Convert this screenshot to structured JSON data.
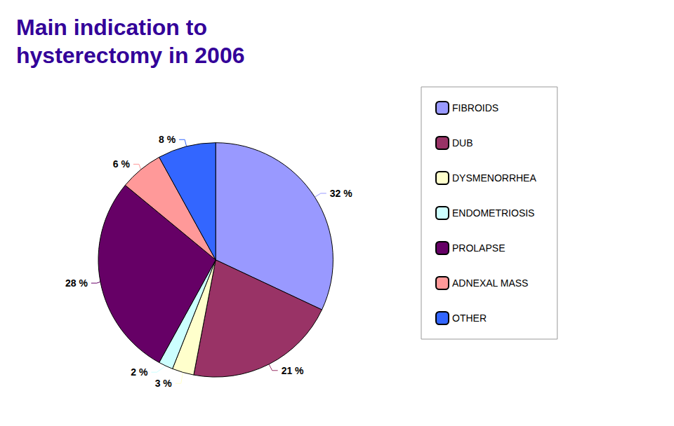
{
  "chart_data": {
    "type": "pie",
    "title": "Main indication to\nhysterectomy in 2006",
    "categories": [
      "FIBROIDS",
      "DUB",
      "DYSMENORRHEA",
      "ENDOMETRIOSIS",
      "PROLAPSE",
      "ADNEXAL MASS",
      "OTHER"
    ],
    "values": [
      32,
      21,
      3,
      2,
      28,
      6,
      8
    ],
    "value_labels": [
      "32 %",
      "21 %",
      "3 %",
      "2 %",
      "28 %",
      "6 %",
      "8 %"
    ],
    "colors": [
      "#9999FF",
      "#993366",
      "#FFFFCC",
      "#CCFFFF",
      "#660066",
      "#FF9999",
      "#3366FF"
    ],
    "data_labels": true,
    "legend": "right"
  }
}
